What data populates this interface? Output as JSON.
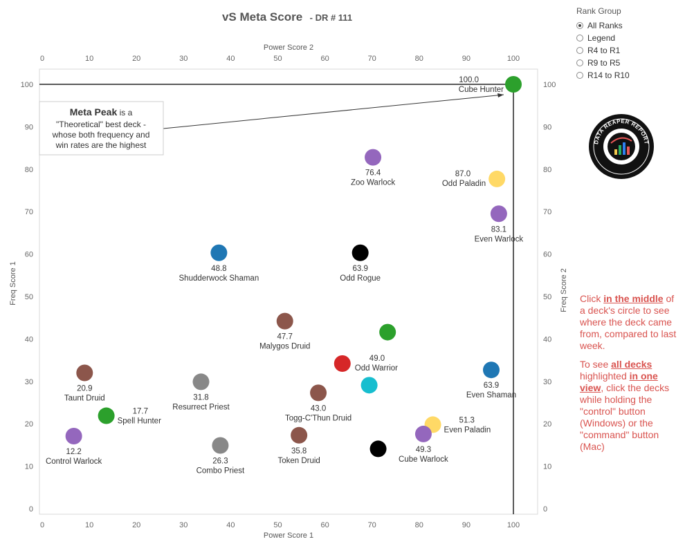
{
  "title": {
    "main": "vS Meta Score",
    "sub": "- DR # 111"
  },
  "callout": {
    "bold": "Meta Peak",
    "line1_rest": " is a",
    "line2": "\"Theoretical\" best deck -",
    "line3": "whose both frequency and",
    "line4": "win rates are the highest"
  },
  "rank_group": {
    "title": "Rank Group",
    "options": [
      "All Ranks",
      "Legend",
      "R4 to R1",
      "R9 to R5",
      "R14 to R10"
    ],
    "selected": 0
  },
  "logo": {
    "icon": "data-reaper-report-logo",
    "text": "DATA REAPER REPORT"
  },
  "help": {
    "p1_a": "Click ",
    "p1_b": "in the middle",
    "p1_c": " of a deck's circle to see where the deck came from, compared to last week.",
    "p2_a": "To see ",
    "p2_b": "all decks ",
    "p2_c": "highlighted ",
    "p2_d": "in one view",
    "p2_e": ", click the decks while holding the \"control\" button (Windows) or the \"command\" button (Mac)"
  },
  "chart_data": {
    "type": "scatter",
    "title": "vS Meta Score - DR # 111",
    "xlabel": "Power Score 1",
    "x2label": "Power Score 2",
    "ylabel": "Freq Score 1",
    "y2label": "Freq Score 2",
    "xlim": [
      0,
      105
    ],
    "ylim": [
      -1,
      105
    ],
    "xticks": [
      0,
      10,
      20,
      30,
      40,
      50,
      60,
      70,
      80,
      90,
      100
    ],
    "yticks": [
      0,
      10,
      20,
      30,
      40,
      50,
      60,
      70,
      80,
      90,
      100
    ],
    "reference_lines": {
      "x": 100,
      "y": 100
    },
    "colors": {
      "hunter": "#2ca02c",
      "warlock": "#9467bd",
      "paladin": "#ffd966",
      "shaman": "#1f77b4",
      "rogue": "#000000",
      "druid": "#8c564b",
      "priest": "#888888",
      "warrior": "#d62728",
      "mage": "#17becf"
    },
    "points": [
      {
        "name": "Cube Hunter",
        "score": "100.0",
        "x": 100,
        "y": 100,
        "cls": "hunter",
        "label_pos": "left-above"
      },
      {
        "name": "Zoo Warlock",
        "score": "76.4",
        "x": 70.2,
        "y": 82.8,
        "cls": "warlock",
        "label_pos": "below"
      },
      {
        "name": "Odd Paladin",
        "score": "87.0",
        "x": 96.5,
        "y": 77.7,
        "cls": "paladin",
        "label_pos": "left"
      },
      {
        "name": "Even Warlock",
        "score": "83.1",
        "x": 96.9,
        "y": 69.5,
        "cls": "warlock",
        "label_pos": "below"
      },
      {
        "name": "Shudderwock Shaman",
        "score": "48.8",
        "x": 37.5,
        "y": 60.3,
        "cls": "shaman",
        "label_pos": "below"
      },
      {
        "name": "Odd Rogue",
        "score": "63.9",
        "x": 67.5,
        "y": 60.3,
        "cls": "rogue",
        "label_pos": "below"
      },
      {
        "name": "Malygos Druid",
        "score": "47.7",
        "x": 51.5,
        "y": 44.2,
        "cls": "druid",
        "label_pos": "below"
      },
      {
        "name": "",
        "score": "",
        "x": 73.3,
        "y": 41.6,
        "cls": "hunter",
        "label_pos": "none"
      },
      {
        "name": "Odd Warrior",
        "score": "49.0",
        "x": 63.7,
        "y": 34.2,
        "cls": "warrior",
        "label_pos": "right-above"
      },
      {
        "name": "Even Shaman",
        "score": "63.9",
        "x": 95.3,
        "y": 32.7,
        "cls": "shaman",
        "label_pos": "below"
      },
      {
        "name": "Taunt Druid",
        "score": "20.9",
        "x": 9.0,
        "y": 32.0,
        "cls": "druid",
        "label_pos": "below"
      },
      {
        "name": "Resurrect Priest",
        "score": "31.8",
        "x": 33.7,
        "y": 29.9,
        "cls": "priest",
        "label_pos": "below"
      },
      {
        "name": "",
        "score": "",
        "x": 69.4,
        "y": 29.1,
        "cls": "mage",
        "label_pos": "none"
      },
      {
        "name": "Togg-C'Thun Druid",
        "score": "43.0",
        "x": 58.6,
        "y": 27.3,
        "cls": "druid",
        "label_pos": "below"
      },
      {
        "name": "Spell Hunter",
        "score": "17.7",
        "x": 13.6,
        "y": 21.9,
        "cls": "hunter",
        "label_pos": "right"
      },
      {
        "name": "Even Paladin",
        "score": "51.3",
        "x": 82.9,
        "y": 19.8,
        "cls": "paladin",
        "label_pos": "right"
      },
      {
        "name": "Control Warlock",
        "score": "12.2",
        "x": 6.7,
        "y": 17.1,
        "cls": "warlock",
        "label_pos": "below"
      },
      {
        "name": "Token Druid",
        "score": "35.8",
        "x": 54.5,
        "y": 17.3,
        "cls": "druid",
        "label_pos": "below"
      },
      {
        "name": "Cube Warlock",
        "score": "49.3",
        "x": 80.9,
        "y": 17.6,
        "cls": "warlock",
        "label_pos": "below"
      },
      {
        "name": "Combo Priest",
        "score": "26.3",
        "x": 37.8,
        "y": 14.9,
        "cls": "priest",
        "label_pos": "below"
      },
      {
        "name": "",
        "score": "",
        "x": 71.3,
        "y": 14.1,
        "cls": "rogue",
        "label_pos": "none"
      }
    ]
  }
}
